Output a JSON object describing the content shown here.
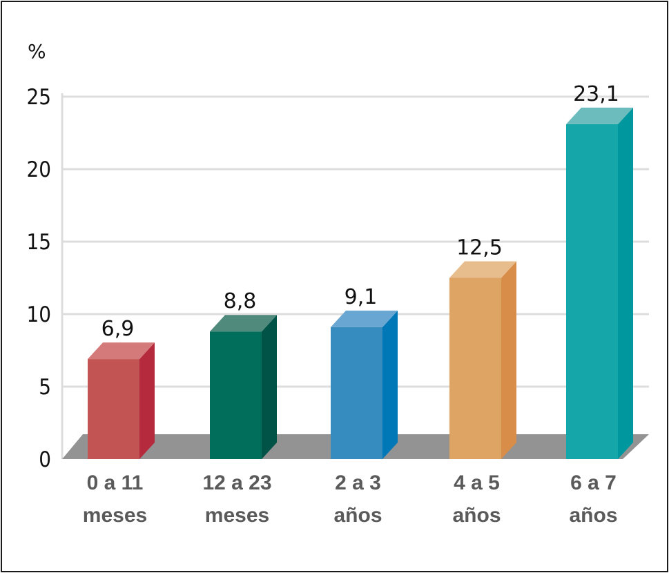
{
  "chart_data": {
    "type": "bar",
    "y_unit": "%",
    "categories": [
      [
        "0 a 11",
        "meses"
      ],
      [
        "12 a 23",
        "meses"
      ],
      [
        "2 a 3",
        "años"
      ],
      [
        "4 a 5",
        "años"
      ],
      [
        "6 a 7",
        "años"
      ]
    ],
    "values": [
      6.9,
      8.8,
      9.1,
      12.5,
      23.1
    ],
    "value_labels": [
      "6,9",
      "8,8",
      "9,1",
      "12,5",
      "23,1"
    ],
    "yticks": [
      0,
      5,
      10,
      15,
      20,
      25
    ],
    "ylim": [
      0,
      25
    ],
    "grid": true,
    "colors": [
      {
        "front": "#c25454",
        "side": "#b52a3c",
        "top": "#d57a7a"
      },
      {
        "front": "#006e5a",
        "side": "#005346",
        "top": "#4f8a7c"
      },
      {
        "front": "#368cbe",
        "side": "#0077b6",
        "top": "#6aa6d2"
      },
      {
        "front": "#dea464",
        "side": "#d88d48",
        "top": "#e8bd8e"
      },
      {
        "front": "#15a6a9",
        "side": "#00979e",
        "top": "#6cbcbe"
      }
    ],
    "floor_color": "#939393"
  }
}
